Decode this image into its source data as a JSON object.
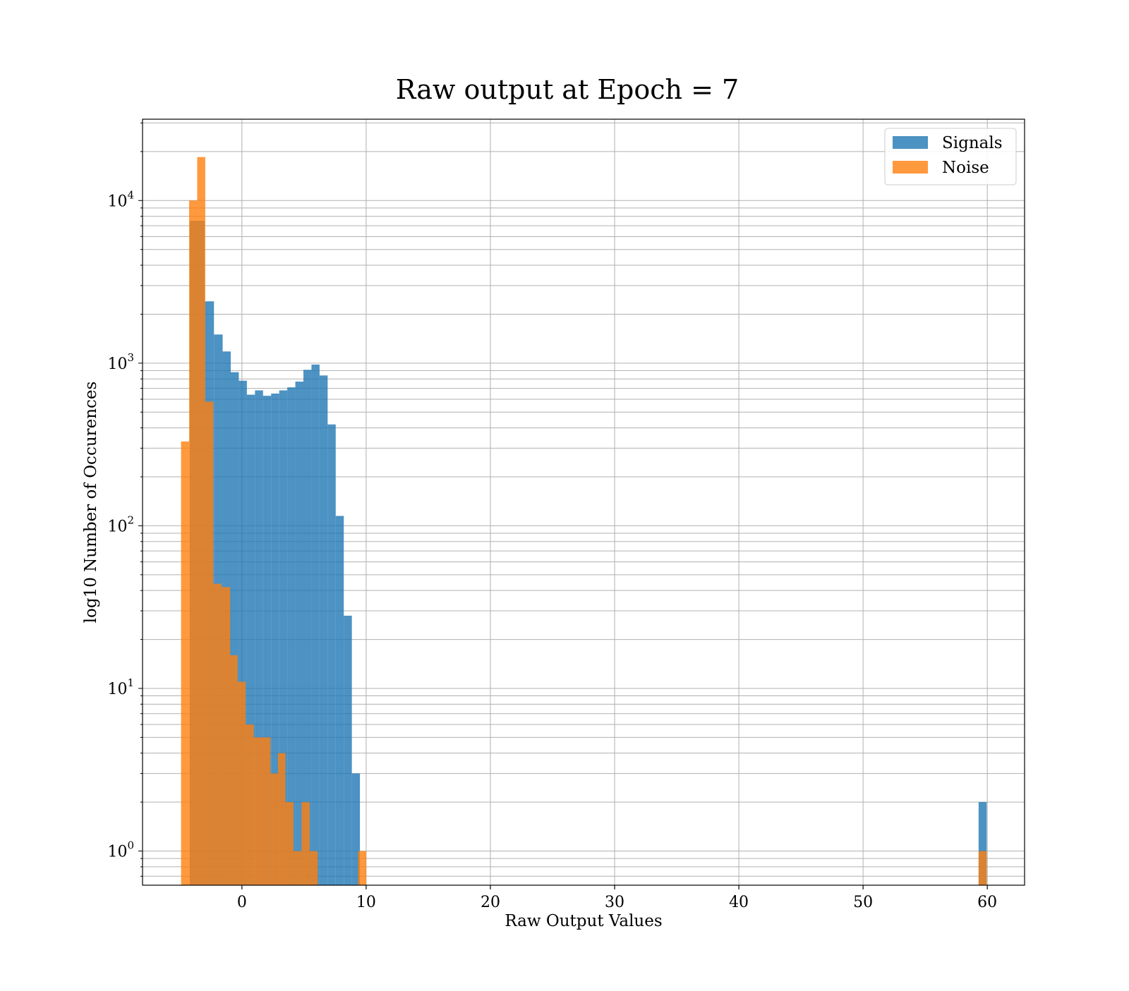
{
  "chart_data": {
    "type": "bar",
    "title": "Raw output at Epoch = 7",
    "xlabel": "Raw Output Values",
    "ylabel": "log10 Number of Occurences",
    "xlim": [
      -8,
      63
    ],
    "ylim_log10": [
      -0.21,
      4.5
    ],
    "y_scale": "log",
    "grid": true,
    "legend_position": "top-right",
    "x_ticks": [
      0,
      10,
      20,
      30,
      40,
      50,
      60
    ],
    "y_ticks": [
      {
        "value": 1,
        "base": "10",
        "exp": "0"
      },
      {
        "value": 10,
        "base": "10",
        "exp": "1"
      },
      {
        "value": 100,
        "base": "10",
        "exp": "2"
      },
      {
        "value": 1000,
        "base": "10",
        "exp": "3"
      },
      {
        "value": 10000,
        "base": "10",
        "exp": "4"
      }
    ],
    "series": [
      {
        "name": "Signals",
        "color": "#1f77b4",
        "opacity": 0.8,
        "bins": [
          {
            "x0": -4.2,
            "x1": -3.0,
            "value": 7500
          },
          {
            "x0": -3.0,
            "x1": -2.25,
            "value": 2400
          },
          {
            "x0": -2.25,
            "x1": -1.55,
            "value": 1500
          },
          {
            "x0": -1.55,
            "x1": -0.9,
            "value": 1180
          },
          {
            "x0": -0.9,
            "x1": -0.25,
            "value": 880
          },
          {
            "x0": -0.25,
            "x1": 0.4,
            "value": 780
          },
          {
            "x0": 0.4,
            "x1": 1.05,
            "value": 640
          },
          {
            "x0": 1.05,
            "x1": 1.7,
            "value": 680
          },
          {
            "x0": 1.7,
            "x1": 2.35,
            "value": 630
          },
          {
            "x0": 2.35,
            "x1": 3.0,
            "value": 650
          },
          {
            "x0": 3.0,
            "x1": 3.65,
            "value": 680
          },
          {
            "x0": 3.65,
            "x1": 4.3,
            "value": 710
          },
          {
            "x0": 4.3,
            "x1": 4.95,
            "value": 770
          },
          {
            "x0": 4.95,
            "x1": 5.6,
            "value": 910
          },
          {
            "x0": 5.6,
            "x1": 6.25,
            "value": 980
          },
          {
            "x0": 6.25,
            "x1": 6.9,
            "value": 840
          },
          {
            "x0": 6.9,
            "x1": 7.55,
            "value": 420
          },
          {
            "x0": 7.55,
            "x1": 8.2,
            "value": 115
          },
          {
            "x0": 8.2,
            "x1": 8.85,
            "value": 28
          },
          {
            "x0": 8.85,
            "x1": 9.5,
            "value": 3
          },
          {
            "x0": 59.3,
            "x1": 59.95,
            "value": 2
          }
        ]
      },
      {
        "name": "Noise",
        "color": "#ff7f0e",
        "opacity": 0.8,
        "bins": [
          {
            "x0": -4.9,
            "x1": -4.25,
            "value": 330
          },
          {
            "x0": -4.25,
            "x1": -3.6,
            "value": 10000
          },
          {
            "x0": -3.6,
            "x1": -2.95,
            "value": 18500
          },
          {
            "x0": -2.95,
            "x1": -2.3,
            "value": 580
          },
          {
            "x0": -2.3,
            "x1": -1.65,
            "value": 44
          },
          {
            "x0": -1.65,
            "x1": -0.95,
            "value": 42
          },
          {
            "x0": -0.95,
            "x1": -0.35,
            "value": 16
          },
          {
            "x0": -0.35,
            "x1": 0.3,
            "value": 11
          },
          {
            "x0": 0.3,
            "x1": 0.95,
            "value": 6
          },
          {
            "x0": 0.95,
            "x1": 1.6,
            "value": 5
          },
          {
            "x0": 1.6,
            "x1": 2.3,
            "value": 5
          },
          {
            "x0": 2.3,
            "x1": 2.9,
            "value": 3
          },
          {
            "x0": 2.9,
            "x1": 3.5,
            "value": 4
          },
          {
            "x0": 3.5,
            "x1": 4.15,
            "value": 2
          },
          {
            "x0": 4.15,
            "x1": 4.8,
            "value": 1
          },
          {
            "x0": 4.8,
            "x1": 5.45,
            "value": 2
          },
          {
            "x0": 5.45,
            "x1": 6.1,
            "value": 1
          },
          {
            "x0": 9.35,
            "x1": 10.0,
            "value": 1
          },
          {
            "x0": 59.3,
            "x1": 59.95,
            "value": 1
          }
        ]
      }
    ]
  }
}
